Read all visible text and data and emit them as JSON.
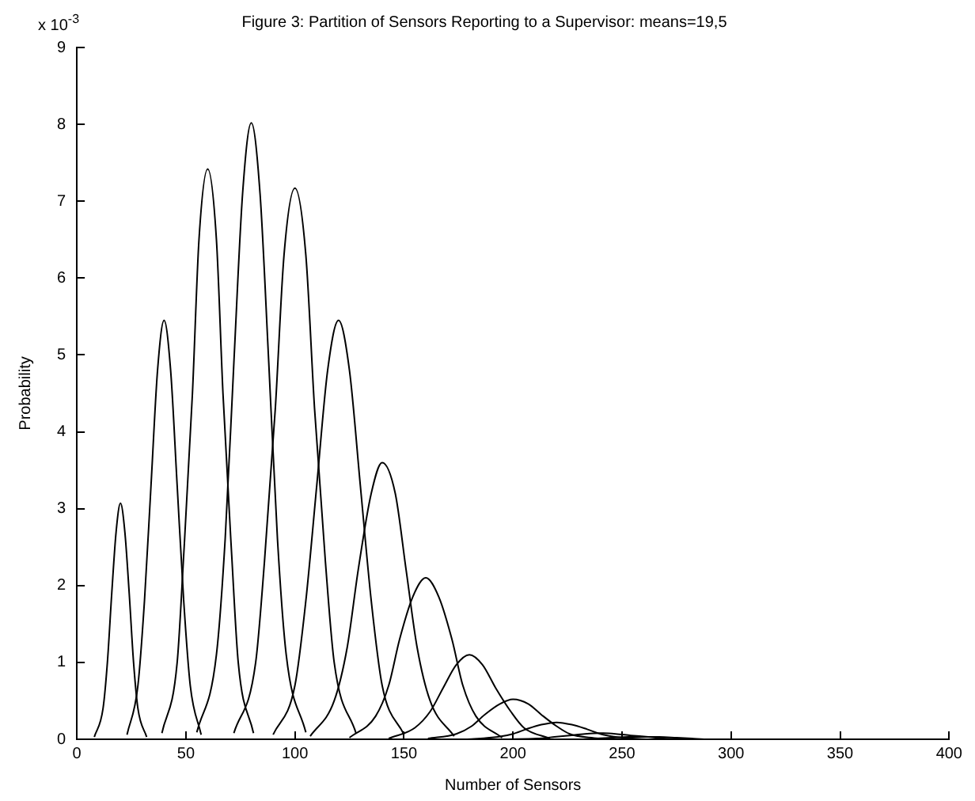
{
  "chart_data": {
    "type": "line",
    "title": "Figure 3: Partition of Sensors Reporting to a Supervisor: means=19,5",
    "xlabel": "Number of Sensors",
    "ylabel": "Probability",
    "annotations": [
      "x 10$^{-3}$"
    ],
    "xlim": [
      0,
      400
    ],
    "xticks": [
      0,
      50,
      100,
      150,
      200,
      250,
      300,
      350,
      400
    ],
    "ylim": [
      0,
      9
    ],
    "yticks": [
      0,
      1,
      2,
      3,
      4,
      5,
      6,
      7,
      8,
      9
    ],
    "grid": false,
    "legend": false,
    "marker": "none",
    "line_style": "solid",
    "series": [
      {
        "color": "#000000",
        "x": [
          8,
          12,
          14,
          16,
          18,
          20,
          22,
          24,
          26,
          28,
          32
        ],
        "values": [
          0.03,
          0.4,
          1.0,
          1.9,
          2.7,
          3.07,
          2.7,
          1.9,
          1.0,
          0.4,
          0.03
        ]
      },
      {
        "color": "#000000",
        "x": [
          23,
          28,
          31,
          34,
          37,
          40,
          43,
          46,
          49,
          52,
          57
        ],
        "values": [
          0.06,
          0.7,
          1.8,
          3.3,
          4.8,
          5.45,
          4.8,
          3.3,
          1.8,
          0.7,
          0.06
        ]
      },
      {
        "color": "#000000",
        "x": [
          39,
          46,
          49,
          53,
          56,
          60,
          64,
          67,
          71,
          74,
          81
        ],
        "values": [
          0.08,
          1.0,
          2.4,
          4.5,
          6.5,
          7.42,
          6.5,
          4.5,
          2.4,
          1.0,
          0.08
        ]
      },
      {
        "color": "#000000",
        "x": [
          55,
          64,
          68,
          72,
          76,
          80,
          84,
          88,
          92,
          96,
          105
        ],
        "values": [
          0.09,
          1.1,
          2.6,
          4.9,
          7.1,
          8.02,
          7.1,
          4.9,
          2.6,
          1.1,
          0.09
        ]
      },
      {
        "color": "#000000",
        "x": [
          72,
          82,
          86,
          91,
          95,
          100,
          105,
          109,
          114,
          118,
          128
        ],
        "values": [
          0.08,
          1.0,
          2.3,
          4.3,
          6.3,
          7.17,
          6.3,
          4.3,
          2.3,
          1.0,
          0.08
        ]
      },
      {
        "color": "#000000",
        "x": [
          90,
          100,
          105,
          110,
          115,
          120,
          125,
          130,
          135,
          140,
          150
        ],
        "values": [
          0.06,
          0.7,
          1.8,
          3.3,
          4.8,
          5.45,
          4.8,
          3.3,
          1.8,
          0.7,
          0.06
        ]
      },
      {
        "color": "#000000",
        "x": [
          107,
          118,
          124,
          129,
          135,
          140,
          146,
          151,
          156,
          162,
          173
        ],
        "values": [
          0.04,
          0.5,
          1.2,
          2.2,
          3.2,
          3.6,
          3.2,
          2.2,
          1.2,
          0.5,
          0.04
        ]
      },
      {
        "color": "#000000",
        "x": [
          125,
          137,
          143,
          148,
          154,
          160,
          166,
          172,
          177,
          183,
          195
        ],
        "values": [
          0.02,
          0.3,
          0.7,
          1.3,
          1.85,
          2.1,
          1.85,
          1.3,
          0.7,
          0.3,
          0.02
        ]
      },
      {
        "color": "#000000",
        "x": [
          143,
          155,
          162,
          168,
          174,
          180,
          186,
          192,
          199,
          205,
          217
        ],
        "values": [
          0.01,
          0.15,
          0.36,
          0.67,
          0.97,
          1.1,
          0.97,
          0.67,
          0.36,
          0.15,
          0.01
        ]
      },
      {
        "color": "#000000",
        "x": [
          161,
          174,
          181,
          187,
          194,
          200,
          207,
          213,
          220,
          226,
          239
        ],
        "values": [
          0.01,
          0.07,
          0.17,
          0.32,
          0.46,
          0.52,
          0.46,
          0.32,
          0.17,
          0.07,
          0.01
        ]
      },
      {
        "color": "#000000",
        "x": [
          179,
          193,
          200,
          206,
          213,
          220,
          227,
          234,
          240,
          247,
          261
        ],
        "values": [
          0,
          0.03,
          0.07,
          0.13,
          0.19,
          0.22,
          0.19,
          0.13,
          0.07,
          0.03,
          0
        ]
      },
      {
        "color": "#000000",
        "x": [
          197,
          211,
          219,
          226,
          233,
          240,
          247,
          254,
          262,
          269,
          283
        ],
        "values": [
          0,
          0.01,
          0.03,
          0.05,
          0.07,
          0.08,
          0.07,
          0.05,
          0.03,
          0.01,
          0
        ]
      },
      {
        "color": "#000000",
        "x": [
          216,
          230,
          238,
          245,
          253,
          260,
          267,
          275,
          282,
          290,
          304
        ],
        "values": [
          0,
          0,
          0.01,
          0.02,
          0.03,
          0.03,
          0.03,
          0.02,
          0.01,
          0,
          0
        ]
      }
    ]
  }
}
